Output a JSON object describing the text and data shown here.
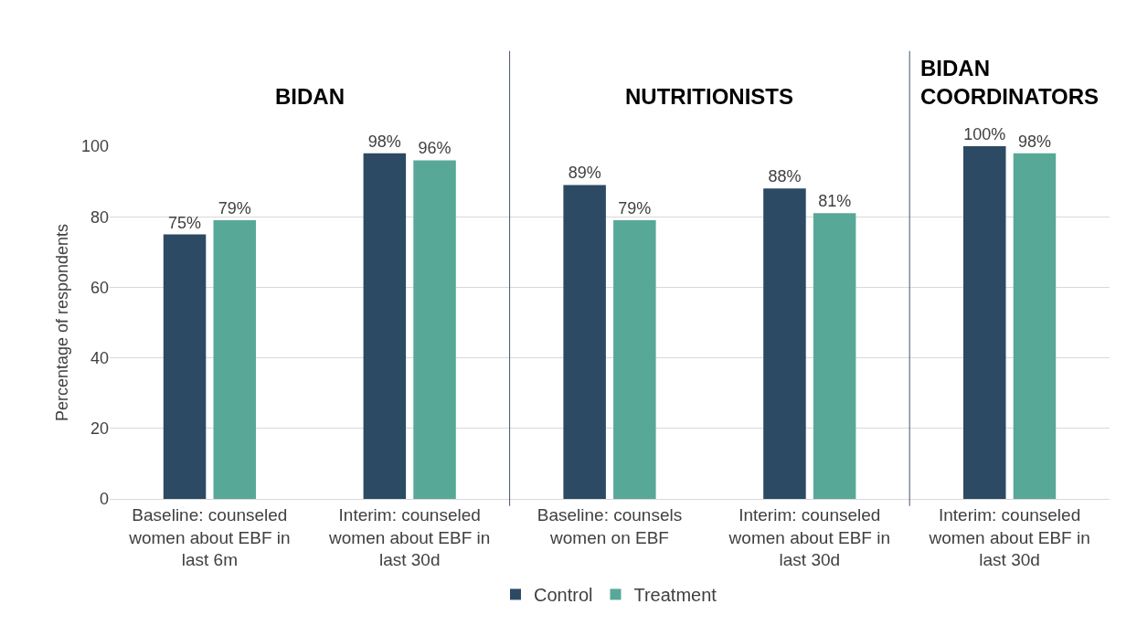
{
  "chart_data": {
    "type": "bar",
    "ylabel": "Percentage of respondents",
    "categories": [
      "Baseline: counseled women about EBF in last 6m",
      "Interim: counseled women about EBF in last 30d",
      "Baseline: counsels women on EBF",
      "Interim: counseled women about EBF in last 30d",
      "Interim: counseled women about EBF in last 30d"
    ],
    "series": [
      {
        "name": "Control",
        "color": "#2c4a63",
        "values": [
          75,
          98,
          89,
          88,
          100
        ],
        "value_labels": [
          "75%",
          "98%",
          "89%",
          "88%",
          "100%"
        ]
      },
      {
        "name": "Treatment",
        "color": "#58a897",
        "values": [
          79,
          96,
          79,
          81,
          98
        ],
        "value_labels": [
          "79%",
          "96%",
          "79%",
          "81%",
          "98%"
        ]
      }
    ],
    "ylim": [
      0,
      100
    ],
    "yticks": [
      0,
      20,
      40,
      60,
      80,
      100
    ],
    "grid": "y",
    "legend": "bottom",
    "annotations": [
      "BIDAN",
      "NUTRITIONISTS",
      "BIDAN COORDINATORS"
    ]
  }
}
